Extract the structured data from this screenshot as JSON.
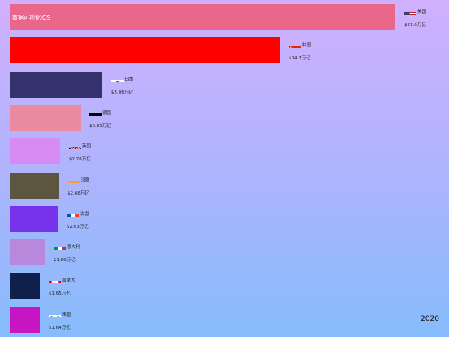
{
  "title": "数据可视化iOS",
  "year": "2020",
  "chart_data": {
    "type": "bar",
    "orientation": "horizontal",
    "title": "数据可视化iOS",
    "year": "2020",
    "categories": [
      "美国",
      "中国",
      "日本",
      "德国",
      "英国",
      "印度",
      "法国",
      "意大利",
      "加拿大",
      "韩国"
    ],
    "values": [
      21.0,
      14.7,
      5.06,
      3.85,
      2.76,
      2.66,
      2.63,
      1.89,
      1.65,
      1.64
    ],
    "value_labels": [
      "$21.0万亿",
      "$14.7万亿",
      "$5.06万亿",
      "$3.85万亿",
      "$2.76万亿",
      "$2.66万亿",
      "$2.63万亿",
      "$1.89万亿",
      "$1.65万亿",
      "$1.64万亿"
    ],
    "colors": [
      "#e9678a",
      "#ff0000",
      "#35336e",
      "#e98a9e",
      "#d68cf3",
      "#5c5540",
      "#7633ea",
      "#b888dd",
      "#10204c",
      "#c715c4"
    ],
    "flags": [
      "us-flag-icon",
      "cn-flag-icon",
      "jp-flag-icon",
      "de-flag-icon",
      "gb-flag-icon",
      "in-flag-icon",
      "fr-flag-icon",
      "it-flag-icon",
      "ca-flag-icon",
      "kr-flag-icon"
    ],
    "xlim": [
      0,
      21.0
    ]
  }
}
